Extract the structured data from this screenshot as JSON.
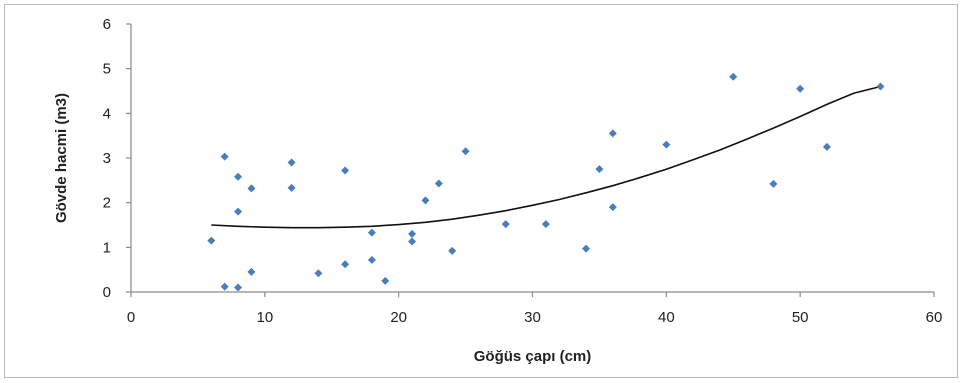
{
  "chart_data": {
    "type": "scatter",
    "title": "",
    "xlabel": "Göğüs çapı (cm)",
    "ylabel": "Gövde hacmi (m3)",
    "xlim": [
      0,
      60
    ],
    "ylim": [
      0,
      6
    ],
    "x_ticks": [
      "0",
      "10",
      "20",
      "30",
      "40",
      "50",
      "60"
    ],
    "y_ticks": [
      "0",
      "1",
      "2",
      "3",
      "4",
      "5",
      "6"
    ],
    "grid": false,
    "legend": "none",
    "marker_color": "#4a7ebb",
    "trend_color": "#111111",
    "points": [
      {
        "x": 6,
        "y": 1.15
      },
      {
        "x": 7,
        "y": 3.03
      },
      {
        "x": 7,
        "y": 0.12
      },
      {
        "x": 8,
        "y": 2.58
      },
      {
        "x": 8,
        "y": 1.8
      },
      {
        "x": 8,
        "y": 0.1
      },
      {
        "x": 9,
        "y": 2.32
      },
      {
        "x": 9,
        "y": 0.45
      },
      {
        "x": 12,
        "y": 2.9
      },
      {
        "x": 12,
        "y": 2.33
      },
      {
        "x": 14,
        "y": 0.42
      },
      {
        "x": 16,
        "y": 2.72
      },
      {
        "x": 16,
        "y": 0.62
      },
      {
        "x": 18,
        "y": 1.33
      },
      {
        "x": 18,
        "y": 0.72
      },
      {
        "x": 19,
        "y": 0.25
      },
      {
        "x": 21,
        "y": 1.3
      },
      {
        "x": 21,
        "y": 1.13
      },
      {
        "x": 22,
        "y": 2.05
      },
      {
        "x": 23,
        "y": 2.43
      },
      {
        "x": 24,
        "y": 0.92
      },
      {
        "x": 25,
        "y": 3.15
      },
      {
        "x": 28,
        "y": 1.52
      },
      {
        "x": 31,
        "y": 1.52
      },
      {
        "x": 34,
        "y": 0.97
      },
      {
        "x": 35,
        "y": 2.75
      },
      {
        "x": 36,
        "y": 3.55
      },
      {
        "x": 36,
        "y": 1.9
      },
      {
        "x": 40,
        "y": 3.3
      },
      {
        "x": 45,
        "y": 4.82
      },
      {
        "x": 48,
        "y": 2.42
      },
      {
        "x": 50,
        "y": 4.55
      },
      {
        "x": 52,
        "y": 3.25
      },
      {
        "x": 56,
        "y": 4.6
      }
    ],
    "trendline": {
      "type": "polynomial",
      "x": [
        6,
        8,
        10,
        12,
        14,
        16,
        18,
        20,
        22,
        24,
        26,
        28,
        30,
        32,
        34,
        36,
        38,
        40,
        42,
        44,
        46,
        48,
        50,
        52,
        54,
        56
      ],
      "y": [
        1.5,
        1.47,
        1.45,
        1.44,
        1.44,
        1.45,
        1.47,
        1.51,
        1.56,
        1.63,
        1.72,
        1.82,
        1.94,
        2.07,
        2.22,
        2.38,
        2.56,
        2.75,
        2.96,
        3.18,
        3.42,
        3.67,
        3.93,
        4.2,
        4.45,
        4.6
      ]
    }
  }
}
